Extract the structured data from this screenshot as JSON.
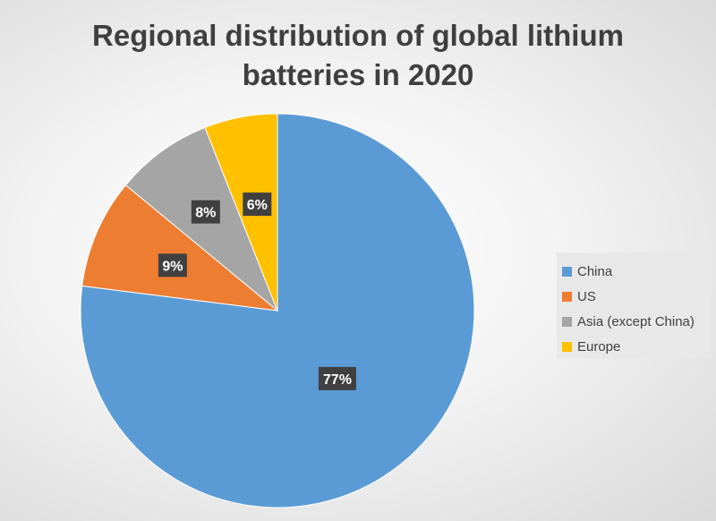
{
  "chart_data": {
    "type": "pie",
    "title_line1": "Regional distribution of global lithium",
    "title_line2": "batteries in 2020",
    "categories": [
      "China",
      "US",
      "Asia (except China)",
      "Europe"
    ],
    "values": [
      77,
      9,
      8,
      6
    ],
    "data_labels": [
      "77%",
      "9%",
      "8%",
      "6%"
    ],
    "colors": [
      "#5b9bd5",
      "#ed7d31",
      "#a5a5a5",
      "#ffc000"
    ],
    "legend_position": "right"
  }
}
